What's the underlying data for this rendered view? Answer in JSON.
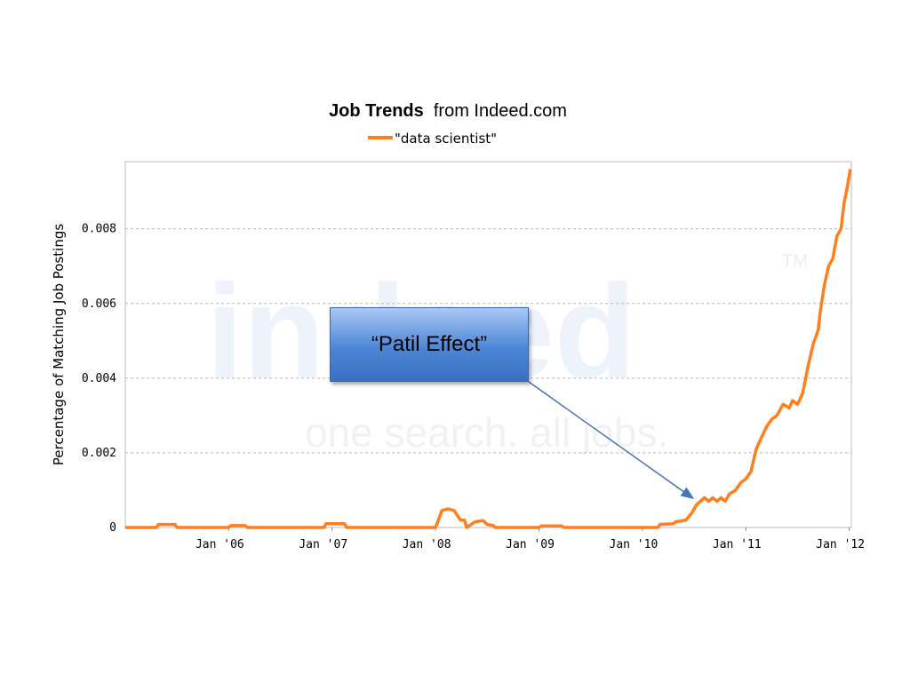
{
  "chart_data": {
    "type": "line",
    "title_bold": "Job Trends",
    "title_rest": "from Indeed.com",
    "xlabel": "",
    "ylabel": "Percentage of Matching Job Postings",
    "ylim": [
      0,
      0.0098
    ],
    "y_ticks": [
      "0",
      "0.002",
      "0.004",
      "0.006",
      "0.008"
    ],
    "y_tick_values": [
      0,
      0.002,
      0.004,
      0.006,
      0.008
    ],
    "x_ticks": [
      "Jan '06",
      "Jan '07",
      "Jan '08",
      "Jan '09",
      "Jan '10",
      "Jan '11",
      "Jan '12"
    ],
    "x_tick_values": [
      2006,
      2007,
      2008,
      2009,
      2010,
      2011,
      2012
    ],
    "xlim": [
      2005.0,
      2012.02
    ],
    "grid": true,
    "legend_position": "top-center",
    "series": [
      {
        "name": "\"data scientist\"",
        "color": "#ff7f1e",
        "x": [
          2005.0,
          2005.3,
          2005.32,
          2005.48,
          2005.5,
          2006.0,
          2006.02,
          2006.16,
          2006.18,
          2006.92,
          2006.94,
          2007.12,
          2007.14,
          2008.0,
          2008.02,
          2008.06,
          2008.12,
          2008.18,
          2008.24,
          2008.28,
          2008.3,
          2008.38,
          2008.44,
          2008.46,
          2008.5,
          2008.56,
          2008.58,
          2009.0,
          2009.02,
          2009.22,
          2009.24,
          2010.15,
          2010.17,
          2010.3,
          2010.32,
          2010.42,
          2010.48,
          2010.52,
          2010.56,
          2010.6,
          2010.64,
          2010.68,
          2010.72,
          2010.76,
          2010.8,
          2010.84,
          2010.9,
          2010.95,
          2011.0,
          2011.05,
          2011.1,
          2011.15,
          2011.2,
          2011.25,
          2011.3,
          2011.36,
          2011.42,
          2011.45,
          2011.5,
          2011.55,
          2011.6,
          2011.65,
          2011.7,
          2011.72,
          2011.76,
          2011.8,
          2011.84,
          2011.88,
          2011.92,
          2011.95,
          2011.98,
          2012.01
        ],
        "values": [
          0,
          0,
          8e-05,
          8e-05,
          0,
          0,
          5e-05,
          5e-05,
          0,
          0,
          0.0001,
          0.0001,
          0,
          0,
          0.00015,
          0.00045,
          0.0005,
          0.00045,
          0.0002,
          0.0002,
          0,
          0.00015,
          0.00018,
          0.00018,
          8e-05,
          5e-05,
          0,
          0,
          4e-05,
          4e-05,
          0,
          0,
          8e-05,
          0.0001,
          0.00015,
          0.0002,
          0.0004,
          0.0006,
          0.0007,
          0.0008,
          0.0007,
          0.0008,
          0.0007,
          0.0008,
          0.0007,
          0.0009,
          0.001,
          0.0012,
          0.0013,
          0.0015,
          0.0021,
          0.0024,
          0.0027,
          0.0029,
          0.003,
          0.0033,
          0.0032,
          0.0034,
          0.0033,
          0.0036,
          0.0043,
          0.0049,
          0.0053,
          0.0058,
          0.0065,
          0.007,
          0.0072,
          0.0078,
          0.008,
          0.0087,
          0.0091,
          0.0096
        ]
      }
    ]
  },
  "watermark": {
    "brand": "indeed",
    "tagline": "one search. all jobs.",
    "tm": "TM"
  },
  "annotation": {
    "label": "“Patil Effect”",
    "arrow_target_x": 2010.48,
    "arrow_target_y": 0.0008
  }
}
